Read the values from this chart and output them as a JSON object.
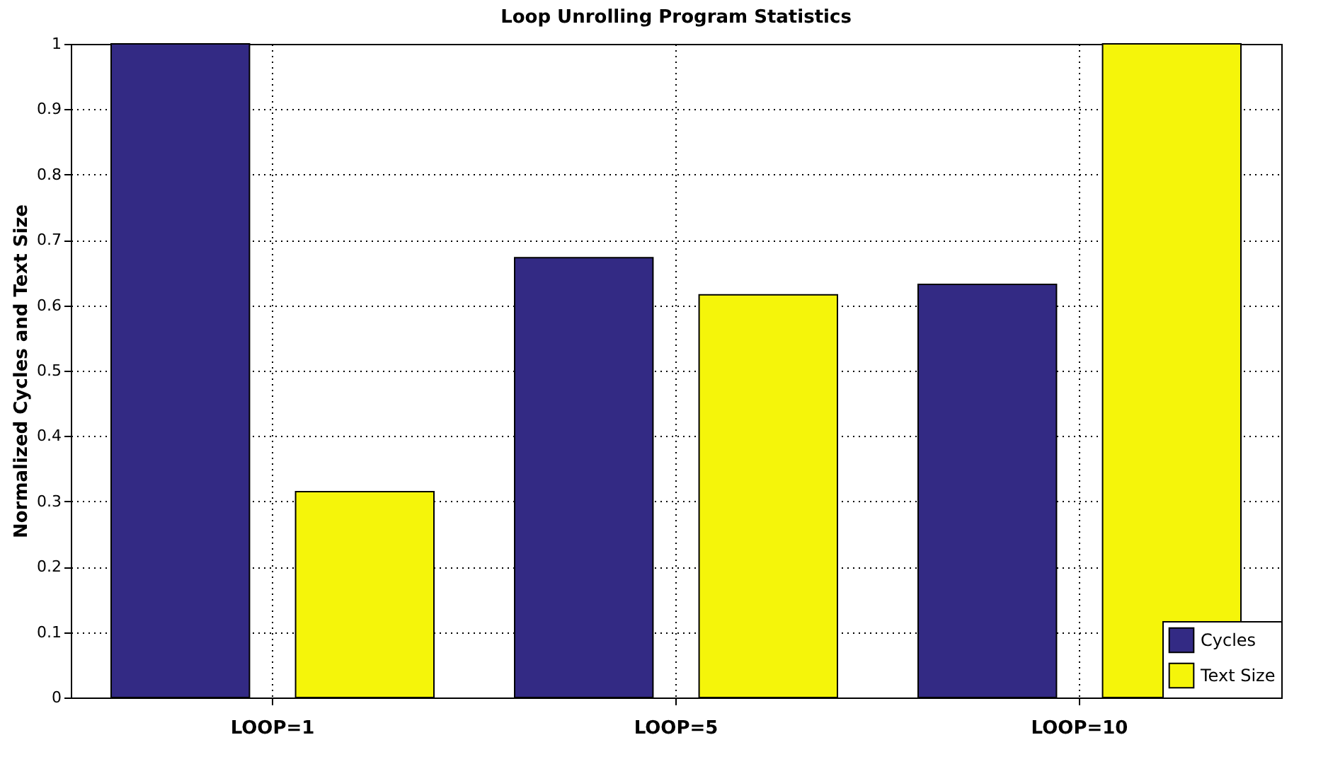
{
  "chart_data": {
    "type": "bar",
    "title": "Loop Unrolling Program Statistics",
    "ylabel": "Normalized Cycles and Text Size",
    "categories": [
      "LOOP=1",
      "LOOP=5",
      "LOOP=10"
    ],
    "series": [
      {
        "name": "Cycles",
        "color": "#332a84",
        "values": [
          1.0,
          0.673,
          0.632
        ]
      },
      {
        "name": "Text Size",
        "color": "#f5f50a",
        "values": [
          0.315,
          0.616,
          1.0
        ]
      }
    ],
    "ylim": [
      0,
      1
    ],
    "yticks": [
      0,
      0.1,
      0.2,
      0.3,
      0.4,
      0.5,
      0.6,
      0.7,
      0.8,
      0.9,
      1
    ],
    "grid": true,
    "legend": "bottom right"
  }
}
